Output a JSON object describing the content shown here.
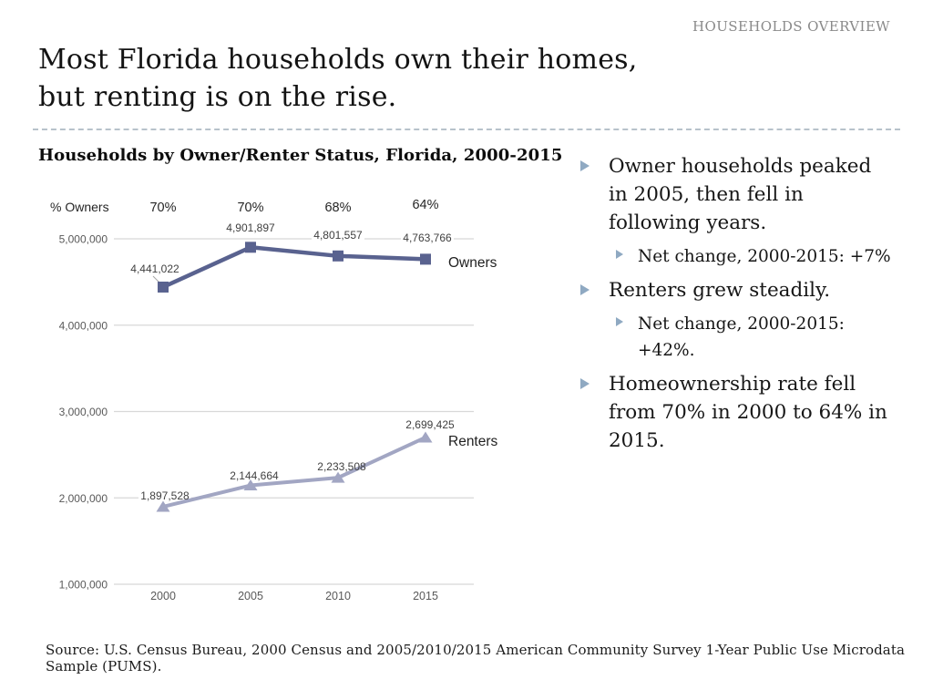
{
  "header": {
    "label": "HOUSEHOLDS OVERVIEW",
    "color": "#8a8a8a"
  },
  "title": {
    "text": "Most Florida households own their homes,\nbut renting is on the rise."
  },
  "chart_data": {
    "type": "line",
    "title": "Households by Owner/Renter Status, Florida, 2000-2015",
    "categories": [
      "2000",
      "2005",
      "2010",
      "2015"
    ],
    "series": [
      {
        "name": "Owners",
        "marker": "square",
        "color": "#59628f",
        "values": [
          4441022,
          4901897,
          4801557,
          4763766
        ],
        "data_labels": [
          "4,441,022",
          "4,901,897",
          "4,801,557",
          "4,763,766"
        ]
      },
      {
        "name": "Renters",
        "marker": "triangle",
        "color": "#a2a6c3",
        "values": [
          1897528,
          2144664,
          2233508,
          2699425
        ],
        "data_labels": [
          "1,897,528",
          "2,144,664",
          "2,233,508",
          "2,699,425"
        ]
      }
    ],
    "percent_owners_row": {
      "label": "% Owners",
      "values": [
        "70%",
        "70%",
        "68%",
        "64%"
      ]
    },
    "y_ticks": [
      {
        "value": 1000000,
        "label": "1,000,000"
      },
      {
        "value": 2000000,
        "label": "2,000,000"
      },
      {
        "value": 3000000,
        "label": "3,000,000"
      },
      {
        "value": 4000000,
        "label": "4,000,000"
      },
      {
        "value": 5000000,
        "label": "5,000,000"
      }
    ],
    "ylim": [
      1000000,
      5000000
    ],
    "grid": true,
    "legend_position": "series-end-labels",
    "gridline_color": "#d8d8d8",
    "tick_color": "#595959",
    "data_label_color": "#404040",
    "xlabel": "",
    "ylabel": ""
  },
  "bullets": [
    {
      "level": 1,
      "text": "Owner households peaked\nin 2005, then fell in\nfollowing years."
    },
    {
      "level": 2,
      "text": "Net change, 2000-2015: +7%"
    },
    {
      "level": 1,
      "text": "Renters grew steadily."
    },
    {
      "level": 2,
      "text": "Net change, 2000-2015:\n+42%."
    },
    {
      "level": 1,
      "text": "Homeownership rate fell\nfrom 70% in 2000 to 64% in\n2015."
    }
  ],
  "bullet_color": "#8fa9c2",
  "source": "Source: U.S. Census Bureau, 2000 Census and 2005/2010/2015 American Community Survey 1-Year Public Use Microdata Sample (PUMS)."
}
